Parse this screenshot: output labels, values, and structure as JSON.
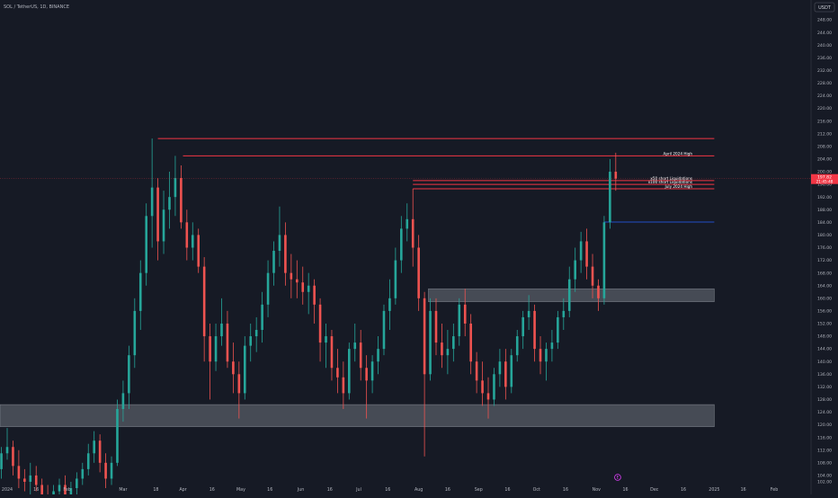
{
  "header": {
    "symbol_label": "SOL / TetherUS, 1D, BINANCE",
    "currency_button": "USDT"
  },
  "colors": {
    "background": "#161a25",
    "up": "#26a69a",
    "down": "#ef5350",
    "level_line": "#f23645",
    "zone_fill": "#8b8f99",
    "price_tag_bg": "#f23645",
    "blue_line": "#2962ff",
    "axis_text": "#b2b5be",
    "event_marker": "#e040fb"
  },
  "price_tag": {
    "price": "197.82",
    "countdown": "21:45:48"
  },
  "event_marker_glyph": "E",
  "chart_data": {
    "type": "candlestick",
    "title": "SOL / TetherUS, 1D, BINANCE",
    "ylim": [
      100,
      252
    ],
    "y_ticks": [
      102,
      104,
      108,
      112,
      116,
      120,
      124,
      128,
      132,
      136,
      140,
      144,
      148,
      152,
      156,
      160,
      164,
      168,
      172,
      176,
      180,
      184,
      188,
      192,
      196,
      200,
      204,
      208,
      212,
      216,
      220,
      224,
      228,
      232,
      236,
      240,
      244,
      248
    ],
    "x_ticks": [
      {
        "label": "2024",
        "date": "2024-01-01"
      },
      {
        "label": "16",
        "date": "2024-01-16"
      },
      {
        "label": "Feb",
        "date": "2024-02-01"
      },
      {
        "label": "Mar",
        "date": "2024-03-01"
      },
      {
        "label": "18",
        "date": "2024-03-18"
      },
      {
        "label": "Apr",
        "date": "2024-04-01"
      },
      {
        "label": "16",
        "date": "2024-04-16"
      },
      {
        "label": "May",
        "date": "2024-05-01"
      },
      {
        "label": "16",
        "date": "2024-05-16"
      },
      {
        "label": "Jun",
        "date": "2024-06-01"
      },
      {
        "label": "16",
        "date": "2024-06-16"
      },
      {
        "label": "Jul",
        "date": "2024-07-01"
      },
      {
        "label": "16",
        "date": "2024-07-16"
      },
      {
        "label": "Aug",
        "date": "2024-08-01"
      },
      {
        "label": "16",
        "date": "2024-08-16"
      },
      {
        "label": "Sep",
        "date": "2024-09-01"
      },
      {
        "label": "16",
        "date": "2024-09-16"
      },
      {
        "label": "Oct",
        "date": "2024-10-01"
      },
      {
        "label": "16",
        "date": "2024-10-16"
      },
      {
        "label": "Nov",
        "date": "2024-11-01"
      },
      {
        "label": "16",
        "date": "2024-11-16"
      },
      {
        "label": "Dec",
        "date": "2024-12-01"
      },
      {
        "label": "16",
        "date": "2024-12-16"
      },
      {
        "label": "2025",
        "date": "2025-01-01"
      },
      {
        "label": "16",
        "date": "2025-01-16"
      },
      {
        "label": "Feb",
        "date": "2025-02-01"
      }
    ],
    "horizontal_levels": [
      {
        "name": "top-red-line",
        "price": 210.5,
        "start": "2024-03-19",
        "end": "2025-01-01",
        "label": ""
      },
      {
        "name": "april-2024-high",
        "price": 205.0,
        "start": "2024-04-01",
        "end": "2025-01-01",
        "label": "April 2024 High"
      },
      {
        "name": "x50-short-liquidations",
        "price": 197.2,
        "start": "2024-07-29",
        "end": "2025-01-01",
        "label": "x50 short Liquidations"
      },
      {
        "name": "x100-short-liquidations",
        "price": 196.0,
        "start": "2024-07-29",
        "end": "2025-01-01",
        "label": "x100 short Liquidations"
      },
      {
        "name": "july-2024-high",
        "price": 194.6,
        "start": "2024-07-29",
        "end": "2025-01-01",
        "label": "July 2024 High"
      },
      {
        "name": "blue-level",
        "price": 184.1,
        "start": "2024-11-05",
        "end": "2025-01-01",
        "label": ""
      }
    ],
    "zones": [
      {
        "name": "upper-supply-zone",
        "top": 163.0,
        "bottom": 158.9,
        "start": "2024-08-06",
        "end": "2025-01-01"
      },
      {
        "name": "lower-demand-zone",
        "top": 126.4,
        "bottom": 119.4,
        "start": "2023-12-26",
        "end": "2025-01-01"
      }
    ],
    "event_marker_date": "2024-11-12",
    "candles": [
      {
        "d": "2023-12-26",
        "o": 105,
        "h": 110,
        "l": 101,
        "c": 106
      },
      {
        "d": "2023-12-29",
        "o": 106,
        "h": 113,
        "l": 103,
        "c": 111
      },
      {
        "d": "2024-01-01",
        "o": 111,
        "h": 119,
        "l": 109,
        "c": 113
      },
      {
        "d": "2024-01-04",
        "o": 113,
        "h": 115,
        "l": 104,
        "c": 107
      },
      {
        "d": "2024-01-07",
        "o": 107,
        "h": 112,
        "l": 100,
        "c": 103
      },
      {
        "d": "2024-01-10",
        "o": 103,
        "h": 106,
        "l": 99,
        "c": 102
      },
      {
        "d": "2024-01-13",
        "o": 102,
        "h": 108,
        "l": 98,
        "c": 104
      },
      {
        "d": "2024-01-16",
        "o": 104,
        "h": 107,
        "l": 99,
        "c": 101
      },
      {
        "d": "2024-01-19",
        "o": 101,
        "h": 103,
        "l": 96,
        "c": 98
      },
      {
        "d": "2024-01-22",
        "o": 98,
        "h": 101,
        "l": 93,
        "c": 96
      },
      {
        "d": "2024-01-25",
        "o": 96,
        "h": 101,
        "l": 94,
        "c": 99
      },
      {
        "d": "2024-01-28",
        "o": 99,
        "h": 103,
        "l": 97,
        "c": 101
      },
      {
        "d": "2024-01-31",
        "o": 101,
        "h": 104,
        "l": 96,
        "c": 98
      },
      {
        "d": "2024-02-03",
        "o": 98,
        "h": 102,
        "l": 95,
        "c": 100
      },
      {
        "d": "2024-02-06",
        "o": 100,
        "h": 105,
        "l": 98,
        "c": 103
      },
      {
        "d": "2024-02-09",
        "o": 103,
        "h": 108,
        "l": 101,
        "c": 106
      },
      {
        "d": "2024-02-12",
        "o": 106,
        "h": 114,
        "l": 104,
        "c": 111
      },
      {
        "d": "2024-02-15",
        "o": 111,
        "h": 118,
        "l": 108,
        "c": 115
      },
      {
        "d": "2024-02-18",
        "o": 115,
        "h": 117,
        "l": 105,
        "c": 108
      },
      {
        "d": "2024-02-21",
        "o": 108,
        "h": 111,
        "l": 100,
        "c": 103
      },
      {
        "d": "2024-02-24",
        "o": 103,
        "h": 110,
        "l": 101,
        "c": 108
      },
      {
        "d": "2024-02-27",
        "o": 108,
        "h": 128,
        "l": 107,
        "c": 125
      },
      {
        "d": "2024-03-01",
        "o": 125,
        "h": 134,
        "l": 121,
        "c": 130
      },
      {
        "d": "2024-03-04",
        "o": 130,
        "h": 145,
        "l": 125,
        "c": 142
      },
      {
        "d": "2024-03-07",
        "o": 142,
        "h": 160,
        "l": 138,
        "c": 156
      },
      {
        "d": "2024-03-10",
        "o": 156,
        "h": 172,
        "l": 150,
        "c": 168
      },
      {
        "d": "2024-03-13",
        "o": 168,
        "h": 190,
        "l": 164,
        "c": 186
      },
      {
        "d": "2024-03-16",
        "o": 186,
        "h": 210.5,
        "l": 176,
        "c": 195
      },
      {
        "d": "2024-03-19",
        "o": 195,
        "h": 198,
        "l": 172,
        "c": 178
      },
      {
        "d": "2024-03-22",
        "o": 178,
        "h": 194,
        "l": 174,
        "c": 188
      },
      {
        "d": "2024-03-25",
        "o": 188,
        "h": 200,
        "l": 182,
        "c": 192
      },
      {
        "d": "2024-03-28",
        "o": 192,
        "h": 205,
        "l": 186,
        "c": 198
      },
      {
        "d": "2024-03-31",
        "o": 198,
        "h": 202,
        "l": 182,
        "c": 184
      },
      {
        "d": "2024-04-03",
        "o": 184,
        "h": 188,
        "l": 172,
        "c": 176
      },
      {
        "d": "2024-04-06",
        "o": 176,
        "h": 184,
        "l": 172,
        "c": 180
      },
      {
        "d": "2024-04-09",
        "o": 180,
        "h": 182,
        "l": 168,
        "c": 170
      },
      {
        "d": "2024-04-12",
        "o": 170,
        "h": 173,
        "l": 140,
        "c": 148
      },
      {
        "d": "2024-04-15",
        "o": 148,
        "h": 152,
        "l": 128,
        "c": 140
      },
      {
        "d": "2024-04-18",
        "o": 140,
        "h": 152,
        "l": 137,
        "c": 148
      },
      {
        "d": "2024-04-21",
        "o": 148,
        "h": 160,
        "l": 145,
        "c": 152
      },
      {
        "d": "2024-04-24",
        "o": 152,
        "h": 156,
        "l": 138,
        "c": 140
      },
      {
        "d": "2024-04-27",
        "o": 140,
        "h": 146,
        "l": 130,
        "c": 136
      },
      {
        "d": "2024-04-30",
        "o": 136,
        "h": 140,
        "l": 122,
        "c": 130
      },
      {
        "d": "2024-05-03",
        "o": 130,
        "h": 148,
        "l": 128,
        "c": 145
      },
      {
        "d": "2024-05-06",
        "o": 145,
        "h": 152,
        "l": 140,
        "c": 148
      },
      {
        "d": "2024-05-09",
        "o": 148,
        "h": 154,
        "l": 143,
        "c": 150
      },
      {
        "d": "2024-05-12",
        "o": 150,
        "h": 162,
        "l": 146,
        "c": 158
      },
      {
        "d": "2024-05-15",
        "o": 158,
        "h": 172,
        "l": 154,
        "c": 168
      },
      {
        "d": "2024-05-18",
        "o": 168,
        "h": 178,
        "l": 164,
        "c": 175
      },
      {
        "d": "2024-05-21",
        "o": 175,
        "h": 189,
        "l": 170,
        "c": 180
      },
      {
        "d": "2024-05-24",
        "o": 180,
        "h": 184,
        "l": 164,
        "c": 168
      },
      {
        "d": "2024-05-27",
        "o": 168,
        "h": 174,
        "l": 160,
        "c": 166
      },
      {
        "d": "2024-05-30",
        "o": 166,
        "h": 172,
        "l": 160,
        "c": 165
      },
      {
        "d": "2024-06-02",
        "o": 165,
        "h": 170,
        "l": 158,
        "c": 162
      },
      {
        "d": "2024-06-05",
        "o": 162,
        "h": 168,
        "l": 155,
        "c": 164
      },
      {
        "d": "2024-06-08",
        "o": 164,
        "h": 166,
        "l": 152,
        "c": 158
      },
      {
        "d": "2024-06-11",
        "o": 158,
        "h": 160,
        "l": 140,
        "c": 146
      },
      {
        "d": "2024-06-14",
        "o": 146,
        "h": 152,
        "l": 138,
        "c": 148
      },
      {
        "d": "2024-06-17",
        "o": 148,
        "h": 150,
        "l": 134,
        "c": 138
      },
      {
        "d": "2024-06-20",
        "o": 138,
        "h": 144,
        "l": 130,
        "c": 135
      },
      {
        "d": "2024-06-23",
        "o": 135,
        "h": 140,
        "l": 125,
        "c": 130
      },
      {
        "d": "2024-06-26",
        "o": 130,
        "h": 146,
        "l": 128,
        "c": 144
      },
      {
        "d": "2024-06-29",
        "o": 144,
        "h": 152,
        "l": 140,
        "c": 146
      },
      {
        "d": "2024-07-02",
        "o": 146,
        "h": 150,
        "l": 134,
        "c": 138
      },
      {
        "d": "2024-07-05",
        "o": 138,
        "h": 142,
        "l": 122,
        "c": 134
      },
      {
        "d": "2024-07-08",
        "o": 134,
        "h": 142,
        "l": 130,
        "c": 140
      },
      {
        "d": "2024-07-11",
        "o": 140,
        "h": 148,
        "l": 136,
        "c": 144
      },
      {
        "d": "2024-07-14",
        "o": 144,
        "h": 158,
        "l": 142,
        "c": 156
      },
      {
        "d": "2024-07-17",
        "o": 156,
        "h": 166,
        "l": 150,
        "c": 160
      },
      {
        "d": "2024-07-20",
        "o": 160,
        "h": 176,
        "l": 158,
        "c": 172
      },
      {
        "d": "2024-07-23",
        "o": 172,
        "h": 186,
        "l": 168,
        "c": 182
      },
      {
        "d": "2024-07-26",
        "o": 182,
        "h": 190,
        "l": 178,
        "c": 185
      },
      {
        "d": "2024-07-29",
        "o": 185,
        "h": 194.6,
        "l": 170,
        "c": 176
      },
      {
        "d": "2024-08-01",
        "o": 176,
        "h": 180,
        "l": 156,
        "c": 160
      },
      {
        "d": "2024-08-04",
        "o": 160,
        "h": 162,
        "l": 110,
        "c": 136
      },
      {
        "d": "2024-08-07",
        "o": 136,
        "h": 160,
        "l": 134,
        "c": 156
      },
      {
        "d": "2024-08-10",
        "o": 156,
        "h": 160,
        "l": 142,
        "c": 146
      },
      {
        "d": "2024-08-13",
        "o": 146,
        "h": 152,
        "l": 138,
        "c": 142
      },
      {
        "d": "2024-08-16",
        "o": 142,
        "h": 150,
        "l": 136,
        "c": 144
      },
      {
        "d": "2024-08-19",
        "o": 144,
        "h": 152,
        "l": 140,
        "c": 148
      },
      {
        "d": "2024-08-22",
        "o": 148,
        "h": 160,
        "l": 145,
        "c": 158
      },
      {
        "d": "2024-08-25",
        "o": 158,
        "h": 163,
        "l": 148,
        "c": 152
      },
      {
        "d": "2024-08-28",
        "o": 152,
        "h": 155,
        "l": 136,
        "c": 140
      },
      {
        "d": "2024-08-31",
        "o": 140,
        "h": 143,
        "l": 130,
        "c": 134
      },
      {
        "d": "2024-09-03",
        "o": 134,
        "h": 140,
        "l": 126,
        "c": 130
      },
      {
        "d": "2024-09-06",
        "o": 130,
        "h": 135,
        "l": 122,
        "c": 128
      },
      {
        "d": "2024-09-09",
        "o": 128,
        "h": 138,
        "l": 126,
        "c": 136
      },
      {
        "d": "2024-09-12",
        "o": 136,
        "h": 144,
        "l": 132,
        "c": 140
      },
      {
        "d": "2024-09-15",
        "o": 140,
        "h": 144,
        "l": 128,
        "c": 132
      },
      {
        "d": "2024-09-18",
        "o": 132,
        "h": 144,
        "l": 130,
        "c": 142
      },
      {
        "d": "2024-09-21",
        "o": 142,
        "h": 150,
        "l": 140,
        "c": 148
      },
      {
        "d": "2024-09-24",
        "o": 148,
        "h": 156,
        "l": 144,
        "c": 154
      },
      {
        "d": "2024-09-27",
        "o": 154,
        "h": 161,
        "l": 150,
        "c": 156
      },
      {
        "d": "2024-09-30",
        "o": 156,
        "h": 158,
        "l": 140,
        "c": 144
      },
      {
        "d": "2024-10-03",
        "o": 144,
        "h": 148,
        "l": 136,
        "c": 140
      },
      {
        "d": "2024-10-06",
        "o": 140,
        "h": 146,
        "l": 134,
        "c": 144
      },
      {
        "d": "2024-10-09",
        "o": 144,
        "h": 150,
        "l": 140,
        "c": 146
      },
      {
        "d": "2024-10-12",
        "o": 146,
        "h": 156,
        "l": 144,
        "c": 154
      },
      {
        "d": "2024-10-15",
        "o": 154,
        "h": 160,
        "l": 150,
        "c": 156
      },
      {
        "d": "2024-10-18",
        "o": 156,
        "h": 170,
        "l": 154,
        "c": 166
      },
      {
        "d": "2024-10-21",
        "o": 166,
        "h": 176,
        "l": 162,
        "c": 172
      },
      {
        "d": "2024-10-24",
        "o": 172,
        "h": 181,
        "l": 168,
        "c": 178
      },
      {
        "d": "2024-10-27",
        "o": 178,
        "h": 182,
        "l": 166,
        "c": 170
      },
      {
        "d": "2024-10-30",
        "o": 170,
        "h": 174,
        "l": 160,
        "c": 164
      },
      {
        "d": "2024-11-02",
        "o": 164,
        "h": 166,
        "l": 156,
        "c": 160
      },
      {
        "d": "2024-11-05",
        "o": 160,
        "h": 186,
        "l": 158,
        "c": 184
      },
      {
        "d": "2024-11-08",
        "o": 184,
        "h": 204,
        "l": 182,
        "c": 200
      },
      {
        "d": "2024-11-11",
        "o": 200,
        "h": 206,
        "l": 194,
        "c": 197.82
      }
    ]
  }
}
